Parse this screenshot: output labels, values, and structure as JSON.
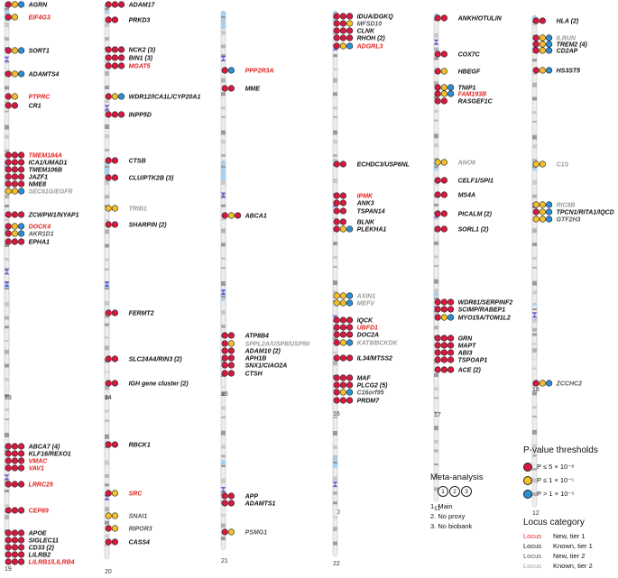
{
  "colors": {
    "tier1_dot": "#d7193f",
    "tier2_dot": "#f5c02a",
    "other_dot": "#2a8fd6",
    "new_tier1_text": "#e0231f",
    "known_tier1_text": "#111111",
    "new_tier2_text": "#555555",
    "known_tier2_text": "#9a9a9a",
    "centromere": "#6a5acd",
    "p_arm_top": "#a8d0ee"
  },
  "legend_pvalue": {
    "title": "P-value thresholds",
    "items": [
      {
        "label": "P ≤ 5 × 10⁻⁸",
        "color": "#d7193f"
      },
      {
        "label": "P ≤ 1 × 10⁻⁵",
        "color": "#f5c02a"
      },
      {
        "label": "P > 1 × 10⁻⁵",
        "color": "#2a8fd6"
      }
    ]
  },
  "meta_analysis": {
    "title": "Meta-analysis",
    "circle_labels": [
      "1",
      "2",
      "3"
    ],
    "items": [
      "1. Main",
      "2. No proxy",
      "3. No biobank"
    ]
  },
  "legend_category": {
    "title": "Locus category",
    "items": [
      {
        "word": "Locus",
        "desc": "New, tier 1",
        "color": "#e0231f"
      },
      {
        "word": "Locus",
        "desc": "Known, tier 1",
        "color": "#111111"
      },
      {
        "word": "Locus",
        "desc": "New, tier 2",
        "color": "#555555"
      },
      {
        "word": "Locus",
        "desc": "Known, tier 2",
        "color": "#9a9a9a"
      }
    ]
  },
  "chromosomes": [
    {
      "label": "1",
      "loci": [
        {
          "name": "AGRN",
          "cat": "kt1",
          "dots": [
            "r",
            "y",
            "b"
          ]
        },
        {
          "name": "EIF4G3",
          "cat": "nt1",
          "dots": [
            "r",
            "y"
          ]
        },
        {
          "name": "SORT1",
          "cat": "kt1",
          "dots": [
            "r",
            "y",
            "b"
          ]
        },
        {
          "name": "ADAMTS4",
          "cat": "kt1",
          "dots": [
            "r",
            "y",
            "b"
          ]
        },
        {
          "name": "PTPRC",
          "cat": "nt1",
          "dots": [
            "r",
            "y"
          ]
        },
        {
          "name": "CR1",
          "cat": "kt1",
          "dots": [
            "r",
            "r"
          ]
        }
      ]
    },
    {
      "label": "2",
      "loci": [
        {
          "name": "ADAM17",
          "cat": "kt1",
          "dots": [
            "r",
            "r",
            "r"
          ]
        },
        {
          "name": "PRKD3",
          "cat": "kt1",
          "dots": [
            "r",
            "r"
          ]
        },
        {
          "name": "NCK2 (3)",
          "cat": "kt1",
          "dots": [
            "r",
            "r",
            "r"
          ]
        },
        {
          "name": "BIN1 (3)",
          "cat": "kt1",
          "dots": [
            "r",
            "r",
            "r"
          ]
        },
        {
          "name": "MGAT5",
          "cat": "nt1",
          "dots": [
            "r",
            "r",
            "r"
          ]
        },
        {
          "name": "WDR12/ICA1L/CYP20A1",
          "cat": "kt1",
          "dots": [
            "r",
            "y",
            "b"
          ]
        },
        {
          "name": "INPP5D",
          "cat": "kt1",
          "dots": [
            "r",
            "r",
            "r"
          ]
        }
      ]
    },
    {
      "label": "3",
      "loci": [
        {
          "name": "PPP2R3A",
          "cat": "nt1",
          "dots": [
            "r",
            "b"
          ]
        },
        {
          "name": "MME",
          "cat": "kt1",
          "dots": [
            "r",
            "r"
          ]
        }
      ]
    },
    {
      "label": "4",
      "loci": [
        {
          "name": "IDUA/DGKQ",
          "cat": "kt1",
          "dots": [
            "r",
            "r",
            "r"
          ]
        },
        {
          "name": "MFSD10",
          "cat": "nt2",
          "dots": [
            "r",
            "r",
            "y"
          ]
        },
        {
          "name": "CLNK",
          "cat": "kt1",
          "dots": [
            "r",
            "r",
            "r"
          ]
        },
        {
          "name": "RHOH (2)",
          "cat": "kt1",
          "dots": [
            "r",
            "r",
            "r"
          ]
        },
        {
          "name": "ADGRL3",
          "cat": "nt1",
          "dots": [
            "r",
            "y",
            "b"
          ]
        }
      ]
    },
    {
      "label": "5",
      "loci": [
        {
          "name": "ANKH/OTULIN",
          "cat": "kt1",
          "dots": [
            "r",
            "r"
          ]
        },
        {
          "name": "COX7C",
          "cat": "kt1",
          "dots": [
            "r",
            "r"
          ]
        },
        {
          "name": "HBEGF",
          "cat": "kt1",
          "dots": [
            "r",
            "y"
          ]
        },
        {
          "name": "TNIP1",
          "cat": "kt1",
          "dots": [
            "r",
            "y",
            "b"
          ]
        },
        {
          "name": "FAM193B",
          "cat": "nt1",
          "dots": [
            "r",
            "y",
            "b"
          ]
        },
        {
          "name": "RASGEF1C",
          "cat": "kt1",
          "dots": [
            "r",
            "r"
          ]
        }
      ]
    },
    {
      "label": "6",
      "loci": [
        {
          "name": "HLA (2)",
          "cat": "kt1",
          "dots": [
            "r",
            "r"
          ]
        },
        {
          "name": "ILRUN",
          "cat": "kt2",
          "dots": [
            "r",
            "y",
            "b"
          ]
        },
        {
          "name": "TREM2 (4)",
          "cat": "kt1",
          "dots": [
            "r",
            "y",
            "b"
          ]
        },
        {
          "name": "CD2AP",
          "cat": "kt1",
          "dots": [
            "r",
            "y",
            "b"
          ]
        },
        {
          "name": "HS3ST5",
          "cat": "kt1",
          "dots": [
            "r",
            "y",
            "b"
          ]
        }
      ]
    },
    {
      "label": "7",
      "loci": [
        {
          "name": "TMEM184A",
          "cat": "nt1",
          "dots": [
            "r",
            "r",
            "r"
          ]
        },
        {
          "name": "ICA1/UMAD1",
          "cat": "kt1",
          "dots": [
            "r",
            "r",
            "r"
          ]
        },
        {
          "name": "TMEM106B",
          "cat": "kt1",
          "dots": [
            "r",
            "r",
            "r"
          ]
        },
        {
          "name": "JAZF1",
          "cat": "kt1",
          "dots": [
            "r",
            "r",
            "r"
          ]
        },
        {
          "name": "NME8",
          "cat": "kt1",
          "dots": [
            "r",
            "r",
            "r"
          ]
        },
        {
          "name": "SEC61G/EGFR",
          "cat": "kt2",
          "dots": [
            "y",
            "y",
            "b"
          ]
        },
        {
          "name": "ZCWPW1/NYAP1",
          "cat": "kt1",
          "dots": [
            "r",
            "r",
            "r"
          ]
        },
        {
          "name": "DOCK4",
          "cat": "nt1",
          "dots": [
            "r",
            "y",
            "b"
          ]
        },
        {
          "name": "AKR1D1",
          "cat": "nt2",
          "dots": [
            "r",
            "y",
            "b"
          ]
        },
        {
          "name": "EPHA1",
          "cat": "kt1",
          "dots": [
            "r",
            "r",
            "r"
          ]
        }
      ]
    },
    {
      "label": "8",
      "loci": [
        {
          "name": "CTSB",
          "cat": "kt1",
          "dots": [
            "r",
            "r"
          ]
        },
        {
          "name": "CLU/PTK2B (3)",
          "cat": "kt1",
          "dots": [
            "r",
            "r"
          ]
        },
        {
          "name": "TRIB1",
          "cat": "kt2",
          "dots": [
            "y",
            "y"
          ]
        },
        {
          "name": "SHARPIN (2)",
          "cat": "kt1",
          "dots": [
            "r",
            "r"
          ]
        }
      ]
    },
    {
      "label": "9",
      "loci": [
        {
          "name": "ABCA1",
          "cat": "kt1",
          "dots": [
            "r",
            "y",
            "r"
          ]
        }
      ]
    },
    {
      "label": "10",
      "loci": [
        {
          "name": "ECHDC3/USP6NL",
          "cat": "kt1",
          "dots": [
            "r",
            "r"
          ]
        },
        {
          "name": "IPMK",
          "cat": "nt1",
          "dots": [
            "r",
            "r"
          ]
        },
        {
          "name": "ANK3",
          "cat": "kt1",
          "dots": [
            "r",
            "r"
          ]
        },
        {
          "name": "TSPAN14",
          "cat": "kt1",
          "dots": [
            "r",
            "r"
          ]
        },
        {
          "name": "BLNK",
          "cat": "kt1",
          "dots": [
            "r",
            "r"
          ]
        },
        {
          "name": "PLEKHA1",
          "cat": "kt1",
          "dots": [
            "r",
            "y",
            "b"
          ]
        }
      ]
    },
    {
      "label": "11",
      "loci": [
        {
          "name": "ANO6",
          "cat": "kt2",
          "dots": [
            "y",
            "y"
          ]
        },
        {
          "name": "CELF1/SPI1",
          "cat": "kt1",
          "dots": [
            "r",
            "r"
          ]
        },
        {
          "name": "MS4A",
          "cat": "kt1",
          "dots": [
            "r",
            "r"
          ]
        },
        {
          "name": "PICALM (2)",
          "cat": "kt1",
          "dots": [
            "r",
            "r"
          ]
        },
        {
          "name": "SORL1 (2)",
          "cat": "kt1",
          "dots": [
            "r",
            "r"
          ]
        }
      ]
    },
    {
      "label": "12",
      "loci": [
        {
          "name": "C1S",
          "cat": "kt2",
          "dots": [
            "y",
            "y"
          ]
        },
        {
          "name": "RIC8B",
          "cat": "kt2",
          "dots": [
            "y",
            "y",
            "b"
          ]
        },
        {
          "name": "TPCN1/RITA1/IQCD",
          "cat": "kt1",
          "dots": [
            "r",
            "y",
            "b"
          ]
        },
        {
          "name": "GTF2H3",
          "cat": "nt2",
          "dots": [
            "y",
            "y",
            "b"
          ]
        }
      ]
    },
    {
      "label": "13",
      "loci": []
    },
    {
      "label": "14",
      "loci": [
        {
          "name": "FERMT2",
          "cat": "kt1",
          "dots": [
            "r",
            "r"
          ]
        },
        {
          "name": "SLC24A4/RIN3 (2)",
          "cat": "kt1",
          "dots": [
            "r",
            "r"
          ]
        },
        {
          "name": "IGH gene cluster (2)",
          "cat": "kt1",
          "dots": [
            "r",
            "r"
          ]
        }
      ]
    },
    {
      "label": "15",
      "loci": [
        {
          "name": "ATP8B4",
          "cat": "kt1",
          "dots": [
            "r",
            "r"
          ]
        },
        {
          "name": "SPPL2A/USP8/USP50",
          "cat": "kt2",
          "dots": [
            "r",
            "y"
          ]
        },
        {
          "name": "ADAM10 (2)",
          "cat": "kt1",
          "dots": [
            "r",
            "r"
          ]
        },
        {
          "name": "APH1B",
          "cat": "kt1",
          "dots": [
            "r",
            "r"
          ]
        },
        {
          "name": "SNX1/CIAO2A",
          "cat": "kt1",
          "dots": [
            "r",
            "r"
          ]
        },
        {
          "name": "CTSH",
          "cat": "kt1",
          "dots": [
            "r",
            "r"
          ]
        }
      ]
    },
    {
      "label": "16",
      "loci": [
        {
          "name": "AXIN1",
          "cat": "kt2",
          "dots": [
            "y",
            "y",
            "b"
          ]
        },
        {
          "name": "MEFV",
          "cat": "kt2",
          "dots": [
            "y",
            "y",
            "b"
          ]
        },
        {
          "name": "IQCK",
          "cat": "kt1",
          "dots": [
            "r",
            "r",
            "r"
          ]
        },
        {
          "name": "UBFD1",
          "cat": "nt1",
          "dots": [
            "r",
            "r",
            "r"
          ]
        },
        {
          "name": "DOC2A",
          "cat": "kt1",
          "dots": [
            "r",
            "r",
            "r"
          ]
        },
        {
          "name": "KAT8/BCKDK",
          "cat": "kt2",
          "dots": [
            "r",
            "y",
            "b"
          ]
        },
        {
          "name": "IL34/MTSS2",
          "cat": "kt1",
          "dots": [
            "r",
            "r",
            "r"
          ]
        },
        {
          "name": "MAF",
          "cat": "kt1",
          "dots": [
            "r",
            "r",
            "r"
          ]
        },
        {
          "name": "PLCG2 (5)",
          "cat": "kt1",
          "dots": [
            "r",
            "r",
            "r"
          ]
        },
        {
          "name": "C16orf95",
          "cat": "nt2",
          "dots": [
            "r",
            "y",
            "b"
          ]
        },
        {
          "name": "PRDM7",
          "cat": "kt1",
          "dots": [
            "r",
            "r",
            "r"
          ]
        }
      ]
    },
    {
      "label": "17",
      "loci": [
        {
          "name": "WDR81/SERPINF2",
          "cat": "kt1",
          "dots": [
            "r",
            "r",
            "r"
          ]
        },
        {
          "name": "SCIMP/RABEP1",
          "cat": "kt1",
          "dots": [
            "r",
            "r",
            "r"
          ]
        },
        {
          "name": "MYO15A/TOM1L2",
          "cat": "kt1",
          "dots": [
            "r",
            "y",
            "b"
          ]
        },
        {
          "name": "GRN",
          "cat": "kt1",
          "dots": [
            "r",
            "r",
            "r"
          ]
        },
        {
          "name": "MAPT",
          "cat": "kt1",
          "dots": [
            "r",
            "r",
            "r"
          ]
        },
        {
          "name": "ABI3",
          "cat": "kt1",
          "dots": [
            "r",
            "r",
            "r"
          ]
        },
        {
          "name": "TSPOAP1",
          "cat": "kt1",
          "dots": [
            "r",
            "r",
            "r"
          ]
        },
        {
          "name": "ACE (2)",
          "cat": "kt1",
          "dots": [
            "r",
            "r",
            "r"
          ]
        }
      ]
    },
    {
      "label": "18",
      "loci": [
        {
          "name": "ZCCHC2",
          "cat": "nt2",
          "dots": [
            "r",
            "y",
            "b"
          ]
        }
      ]
    },
    {
      "label": "19",
      "loci": [
        {
          "name": "ABCA7 (4)",
          "cat": "kt1",
          "dots": [
            "r",
            "r",
            "r"
          ]
        },
        {
          "name": "KLF16/REXO1",
          "cat": "kt1",
          "dots": [
            "r",
            "r",
            "r"
          ]
        },
        {
          "name": "VMAC",
          "cat": "nt1",
          "dots": [
            "r",
            "r",
            "r"
          ]
        },
        {
          "name": "VAV1",
          "cat": "nt1",
          "dots": [
            "r",
            "r",
            "r"
          ]
        },
        {
          "name": "LRRC25",
          "cat": "nt1",
          "dots": [
            "r",
            "r",
            "r"
          ]
        },
        {
          "name": "CEP89",
          "cat": "nt1",
          "dots": [
            "r",
            "r",
            "r"
          ]
        },
        {
          "name": "APOE",
          "cat": "kt1",
          "dots": [
            "r",
            "r",
            "r"
          ]
        },
        {
          "name": "SIGLEC11",
          "cat": "kt1",
          "dots": [
            "r",
            "r",
            "r"
          ]
        },
        {
          "name": "CD33 (2)",
          "cat": "kt1",
          "dots": [
            "r",
            "r",
            "r"
          ]
        },
        {
          "name": "LILRB2",
          "cat": "kt1",
          "dots": [
            "r",
            "r",
            "r"
          ]
        },
        {
          "name": "LILRB1/LILRB4",
          "cat": "nt1",
          "dots": [
            "r",
            "r",
            "r"
          ]
        }
      ]
    },
    {
      "label": "20",
      "loci": [
        {
          "name": "RBCK1",
          "cat": "kt1",
          "dots": [
            "r",
            "r"
          ]
        },
        {
          "name": "SRC",
          "cat": "nt1",
          "dots": [
            "r",
            "y"
          ]
        },
        {
          "name": "SNAI1",
          "cat": "nt2",
          "dots": [
            "y",
            "y"
          ]
        },
        {
          "name": "RIPOR3",
          "cat": "nt2",
          "dots": [
            "r",
            "y"
          ]
        },
        {
          "name": "CASS4",
          "cat": "kt1",
          "dots": [
            "r",
            "r"
          ]
        }
      ]
    },
    {
      "label": "21",
      "loci": [
        {
          "name": "APP",
          "cat": "kt1",
          "dots": [
            "r",
            "r"
          ]
        },
        {
          "name": "ADAMTS1",
          "cat": "kt1",
          "dots": [
            "r",
            "r"
          ]
        },
        {
          "name": "PSMG1",
          "cat": "nt2",
          "dots": [
            "r",
            "y"
          ]
        }
      ]
    },
    {
      "label": "22",
      "loci": []
    }
  ]
}
